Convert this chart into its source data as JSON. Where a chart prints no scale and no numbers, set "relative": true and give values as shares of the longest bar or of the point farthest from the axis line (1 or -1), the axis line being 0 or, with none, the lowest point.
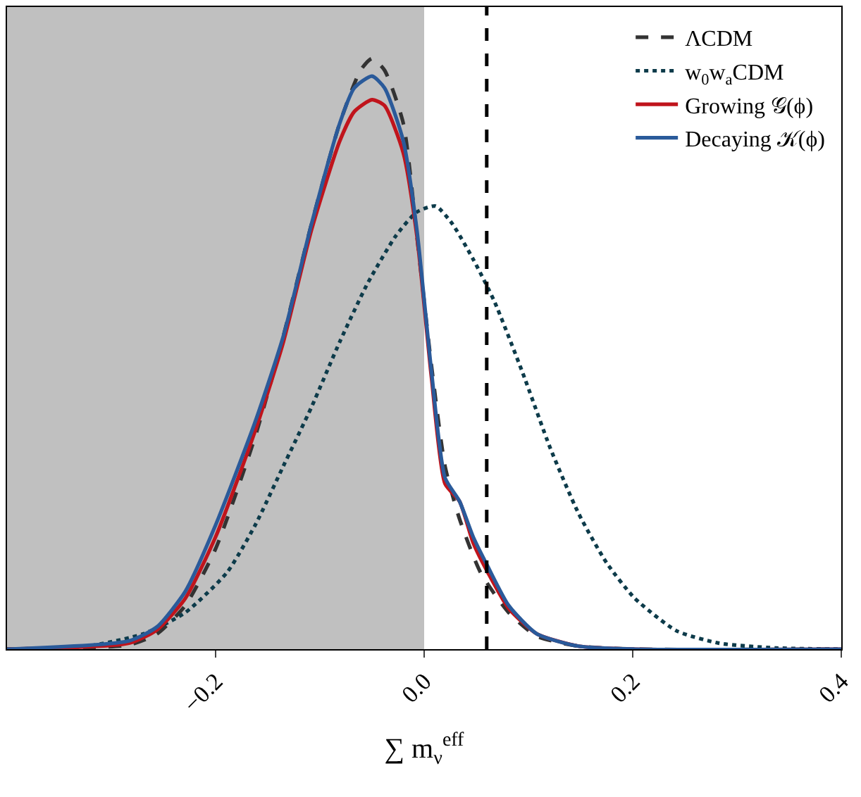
{
  "chart_data": {
    "type": "line",
    "relative": true,
    "xlabel": "∑ m$_{ν}$$^{eff}$",
    "xlim": [
      -0.4,
      0.4
    ],
    "xticks": [
      {
        "value": -0.2,
        "label": "−0.2"
      },
      {
        "value": 0,
        "label": "0.0"
      },
      0.2,
      0.4
    ],
    "grid": false,
    "legend": "top right",
    "marker": "none",
    "bands": [
      {
        "axis": "x",
        "from": -0.4,
        "to": 0.0,
        "color": "#c0c0c0"
      }
    ],
    "ref_lines": [
      {
        "axis": "x",
        "value": 0.06,
        "color": "#000000",
        "line_style": "dashed"
      }
    ],
    "series": [
      {
        "name": "ΛCDM",
        "color": "#333333",
        "line_style": "dashed",
        "x": [
          -0.4,
          -0.337,
          -0.283,
          -0.256,
          -0.229,
          -0.2,
          -0.162,
          -0.135,
          -0.108,
          -0.081,
          -0.061,
          -0.05,
          -0.038,
          -0.02,
          -0.007,
          0.007,
          0.02,
          0.034,
          0.054,
          0.081,
          0.108,
          0.148,
          0.202,
          0.4
        ],
        "values": [
          0,
          0.002,
          0.007,
          0.026,
          0.074,
          0.17,
          0.36,
          0.53,
          0.72,
          0.89,
          0.98,
          1.0,
          0.98,
          0.89,
          0.7,
          0.48,
          0.31,
          0.22,
          0.13,
          0.062,
          0.022,
          0.005,
          0,
          0
        ]
      },
      {
        "name": "w$_{0}$w$_{a}$CDM",
        "color": "#0d3b4a",
        "line_style": "dotted",
        "x": [
          -0.4,
          -0.323,
          -0.269,
          -0.229,
          -0.189,
          -0.162,
          -0.135,
          -0.108,
          -0.081,
          -0.054,
          -0.027,
          -0.007,
          0.011,
          0.027,
          0.047,
          0.067,
          0.094,
          0.121,
          0.148,
          0.175,
          0.202,
          0.242,
          0.283,
          0.337,
          0.4
        ],
        "values": [
          0,
          0.005,
          0.026,
          0.062,
          0.13,
          0.21,
          0.31,
          0.41,
          0.52,
          0.62,
          0.7,
          0.74,
          0.75,
          0.72,
          0.66,
          0.59,
          0.47,
          0.34,
          0.23,
          0.146,
          0.086,
          0.031,
          0.01,
          0.002,
          0
        ]
      },
      {
        "name": "Growing 𝒢(ϕ)",
        "color": "#c0141c",
        "line_style": "solid",
        "x": [
          -0.4,
          -0.283,
          -0.256,
          -0.229,
          -0.2,
          -0.162,
          -0.135,
          -0.108,
          -0.081,
          -0.067,
          -0.05,
          -0.038,
          -0.02,
          -0.007,
          0.007,
          0.02,
          0.034,
          0.047,
          0.061,
          0.081,
          0.108,
          0.148,
          0.202,
          0.4
        ],
        "values": [
          0,
          0.01,
          0.033,
          0.086,
          0.19,
          0.37,
          0.52,
          0.71,
          0.86,
          0.91,
          0.93,
          0.92,
          0.84,
          0.7,
          0.46,
          0.28,
          0.25,
          0.18,
          0.13,
          0.069,
          0.026,
          0.005,
          0,
          0
        ]
      },
      {
        "name": "Decaying 𝒦(ϕ)",
        "color": "#2a5a9a",
        "line_style": "solid",
        "x": [
          -0.4,
          -0.283,
          -0.256,
          -0.229,
          -0.2,
          -0.162,
          -0.135,
          -0.108,
          -0.081,
          -0.067,
          -0.05,
          -0.038,
          -0.02,
          -0.007,
          0.007,
          0.02,
          0.034,
          0.047,
          0.061,
          0.081,
          0.108,
          0.148,
          0.202,
          0.4
        ],
        "values": [
          0,
          0.014,
          0.038,
          0.098,
          0.21,
          0.385,
          0.53,
          0.72,
          0.89,
          0.95,
          0.97,
          0.95,
          0.86,
          0.71,
          0.47,
          0.29,
          0.25,
          0.19,
          0.14,
          0.074,
          0.026,
          0.005,
          0,
          0
        ]
      }
    ]
  }
}
